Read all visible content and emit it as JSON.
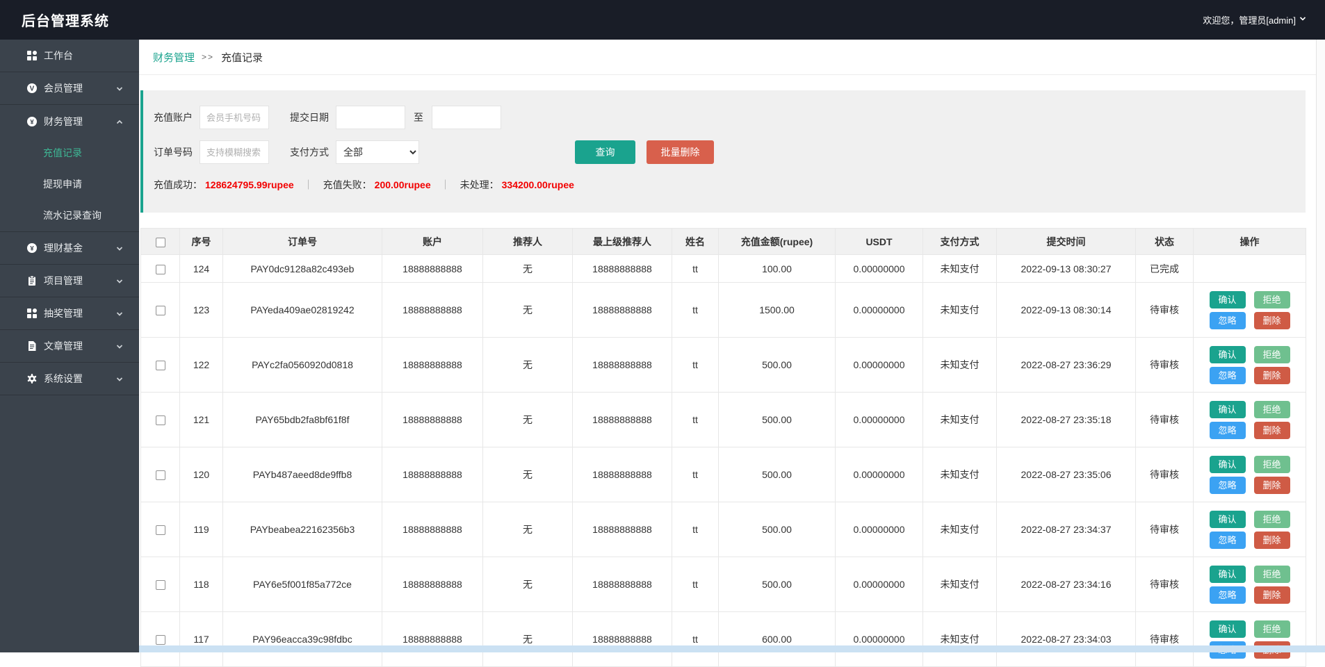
{
  "header": {
    "title": "后台管理系统",
    "user": "欢迎您，管理员[admin]"
  },
  "sidebar": {
    "items": [
      {
        "label": "工作台",
        "icon": "dashboard-icon"
      },
      {
        "label": "会员管理",
        "icon": "member-icon",
        "chevron": "down"
      },
      {
        "label": "财务管理",
        "icon": "finance-icon",
        "chevron": "up",
        "children": [
          {
            "label": "充值记录",
            "active": true
          },
          {
            "label": "提现申请",
            "active": false
          },
          {
            "label": "流水记录查询",
            "active": false
          }
        ]
      },
      {
        "label": "理财基金",
        "icon": "fund-icon",
        "chevron": "down"
      },
      {
        "label": "项目管理",
        "icon": "project-icon",
        "chevron": "down"
      },
      {
        "label": "抽奖管理",
        "icon": "lottery-icon",
        "chevron": "down"
      },
      {
        "label": "文章管理",
        "icon": "article-icon",
        "chevron": "down"
      },
      {
        "label": "系统设置",
        "icon": "settings-icon",
        "chevron": "down"
      }
    ]
  },
  "breadcrumb": {
    "parent": "财务管理",
    "separator": ">>",
    "current": "充值记录"
  },
  "filters": {
    "recharge_account": {
      "label": "充值账户",
      "placeholder": "会员手机号码",
      "value": ""
    },
    "submit_date": {
      "label": "提交日期",
      "value": ""
    },
    "to_label": "至",
    "date_to": {
      "value": ""
    },
    "order_number": {
      "label": "订单号码",
      "placeholder": "支持模糊搜索",
      "value": ""
    },
    "pay_method": {
      "label": "支付方式",
      "selected": "全部"
    },
    "search_button": "查询",
    "batch_delete_button": "批量删除"
  },
  "stats": {
    "success_label": "充值成功：",
    "success_value": "128624795.99rupee",
    "fail_label": "充值失败：",
    "fail_value": "200.00rupee",
    "pending_label": "未处理：",
    "pending_value": "334200.00rupee",
    "divider": "｜"
  },
  "table": {
    "columns": [
      "序号",
      "订单号",
      "账户",
      "推荐人",
      "最上级推荐人",
      "姓名",
      "充值金额(rupee)",
      "USDT",
      "支付方式",
      "提交时间",
      "状态",
      "操作"
    ],
    "action_labels": {
      "confirm": "确认",
      "reject": "拒绝",
      "ignore": "忽略",
      "delete": "删除"
    },
    "status_done": "已完成",
    "status_pending": "待审核",
    "rows": [
      {
        "id": "124",
        "order": "PAY0dc9128a82c493eb",
        "account": "18888888888",
        "referrer": "无",
        "top_referrer": "18888888888",
        "name": "tt",
        "amount": "100.00",
        "usdt": "0.00000000",
        "pay_method": "未知支付",
        "time": "2022-09-13 08:30:27",
        "status": "已完成",
        "actions": false
      },
      {
        "id": "123",
        "order": "PAYeda409ae02819242",
        "account": "18888888888",
        "referrer": "无",
        "top_referrer": "18888888888",
        "name": "tt",
        "amount": "1500.00",
        "usdt": "0.00000000",
        "pay_method": "未知支付",
        "time": "2022-09-13 08:30:14",
        "status": "待审核",
        "actions": true
      },
      {
        "id": "122",
        "order": "PAYc2fa0560920d0818",
        "account": "18888888888",
        "referrer": "无",
        "top_referrer": "18888888888",
        "name": "tt",
        "amount": "500.00",
        "usdt": "0.00000000",
        "pay_method": "未知支付",
        "time": "2022-08-27 23:36:29",
        "status": "待审核",
        "actions": true
      },
      {
        "id": "121",
        "order": "PAY65bdb2fa8bf61f8f",
        "account": "18888888888",
        "referrer": "无",
        "top_referrer": "18888888888",
        "name": "tt",
        "amount": "500.00",
        "usdt": "0.00000000",
        "pay_method": "未知支付",
        "time": "2022-08-27 23:35:18",
        "status": "待审核",
        "actions": true
      },
      {
        "id": "120",
        "order": "PAYb487aeed8de9ffb8",
        "account": "18888888888",
        "referrer": "无",
        "top_referrer": "18888888888",
        "name": "tt",
        "amount": "500.00",
        "usdt": "0.00000000",
        "pay_method": "未知支付",
        "time": "2022-08-27 23:35:06",
        "status": "待审核",
        "actions": true
      },
      {
        "id": "119",
        "order": "PAYbeabea22162356b3",
        "account": "18888888888",
        "referrer": "无",
        "top_referrer": "18888888888",
        "name": "tt",
        "amount": "500.00",
        "usdt": "0.00000000",
        "pay_method": "未知支付",
        "time": "2022-08-27 23:34:37",
        "status": "待审核",
        "actions": true
      },
      {
        "id": "118",
        "order": "PAY6e5f001f85a772ce",
        "account": "18888888888",
        "referrer": "无",
        "top_referrer": "18888888888",
        "name": "tt",
        "amount": "500.00",
        "usdt": "0.00000000",
        "pay_method": "未知支付",
        "time": "2022-08-27 23:34:16",
        "status": "待审核",
        "actions": true
      },
      {
        "id": "117",
        "order": "PAY96eacca39c98fdbc",
        "account": "18888888888",
        "referrer": "无",
        "top_referrer": "18888888888",
        "name": "tt",
        "amount": "600.00",
        "usdt": "0.00000000",
        "pay_method": "未知支付",
        "time": "2022-08-27 23:34:03",
        "status": "待审核",
        "actions": true
      }
    ]
  },
  "colors": {
    "topbar-bg": "#191d27",
    "sidebar-bg": "#3b434c",
    "accent": "#1aa38e",
    "accent-light": "#3eb795",
    "danger": "#d8604c",
    "danger2": "#cf5b45",
    "green": "#6fc08f",
    "blue": "#3ba2f3",
    "red-text": "#f20000"
  }
}
